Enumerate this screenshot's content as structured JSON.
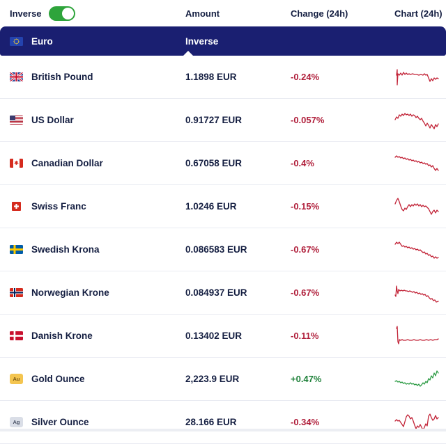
{
  "controls": {
    "inverse_label": "Inverse",
    "inverse_on": true
  },
  "columns": {
    "amount": "Amount",
    "change": "Change (24h)",
    "chart": "Chart (24h)"
  },
  "base_row": {
    "name": "Euro",
    "right_label": "Inverse",
    "icon": {
      "type": "flag",
      "code": "eu"
    }
  },
  "colors": {
    "navy_band": "#1A1F71",
    "text_dark": "#141E41",
    "negative": "#B01F3B",
    "positive": "#1E8039",
    "toggle_green": "#2EA43B",
    "chart_down": "#C22337",
    "chart_up": "#2E9C46",
    "row_border": "#E9EBF2"
  },
  "rows": [
    {
      "name": "British Pound",
      "icon": {
        "type": "flag",
        "code": "gb"
      },
      "amount": "1.1898 EUR",
      "change": "-0.24%",
      "trend": "down",
      "spark": [
        [
          3,
          13
        ],
        [
          4,
          5
        ],
        [
          4,
          27
        ],
        [
          5,
          11
        ],
        [
          7,
          13
        ],
        [
          9,
          10
        ],
        [
          11,
          13
        ],
        [
          13,
          9
        ],
        [
          15,
          12
        ],
        [
          17,
          10
        ],
        [
          19,
          12
        ],
        [
          21,
          11
        ],
        [
          23,
          12
        ],
        [
          26,
          11
        ],
        [
          29,
          12
        ],
        [
          32,
          12
        ],
        [
          35,
          13
        ],
        [
          38,
          12
        ],
        [
          41,
          13
        ],
        [
          43,
          11
        ],
        [
          45,
          13
        ],
        [
          47,
          12
        ],
        [
          49,
          17
        ],
        [
          51,
          22
        ],
        [
          53,
          18
        ],
        [
          55,
          21
        ],
        [
          57,
          17
        ],
        [
          59,
          19
        ],
        [
          61,
          17
        ],
        [
          63,
          18
        ]
      ]
    },
    {
      "name": "US Dollar",
      "icon": {
        "type": "flag",
        "code": "us"
      },
      "amount": "0.91727 EUR",
      "change": "-0.057%",
      "trend": "down",
      "spark": [
        [
          1,
          15
        ],
        [
          3,
          11
        ],
        [
          5,
          13
        ],
        [
          7,
          8
        ],
        [
          9,
          10
        ],
        [
          11,
          7
        ],
        [
          13,
          9
        ],
        [
          15,
          6
        ],
        [
          17,
          8
        ],
        [
          19,
          7
        ],
        [
          21,
          9
        ],
        [
          23,
          7
        ],
        [
          25,
          10
        ],
        [
          27,
          8
        ],
        [
          29,
          9
        ],
        [
          31,
          12
        ],
        [
          33,
          10
        ],
        [
          35,
          13
        ],
        [
          37,
          15
        ],
        [
          39,
          13
        ],
        [
          41,
          17
        ],
        [
          43,
          20
        ],
        [
          45,
          24
        ],
        [
          47,
          20
        ],
        [
          49,
          23
        ],
        [
          51,
          27
        ],
        [
          53,
          22
        ],
        [
          55,
          25
        ],
        [
          57,
          28
        ],
        [
          59,
          22
        ],
        [
          61,
          25
        ],
        [
          63,
          21
        ]
      ]
    },
    {
      "name": "Canadian Dollar",
      "icon": {
        "type": "flag",
        "code": "ca"
      },
      "amount": "0.67058 EUR",
      "change": "-0.4%",
      "trend": "down",
      "spark": [
        [
          1,
          7
        ],
        [
          3,
          5
        ],
        [
          5,
          7
        ],
        [
          7,
          6
        ],
        [
          9,
          8
        ],
        [
          11,
          7
        ],
        [
          13,
          9
        ],
        [
          15,
          8
        ],
        [
          17,
          10
        ],
        [
          19,
          9
        ],
        [
          21,
          11
        ],
        [
          23,
          10
        ],
        [
          25,
          12
        ],
        [
          27,
          11
        ],
        [
          29,
          13
        ],
        [
          31,
          12
        ],
        [
          33,
          14
        ],
        [
          35,
          13
        ],
        [
          37,
          15
        ],
        [
          39,
          14
        ],
        [
          41,
          16
        ],
        [
          43,
          15
        ],
        [
          45,
          17
        ],
        [
          47,
          16
        ],
        [
          49,
          19
        ],
        [
          51,
          18
        ],
        [
          53,
          21
        ],
        [
          55,
          19
        ],
        [
          57,
          23
        ],
        [
          59,
          26
        ],
        [
          61,
          23
        ],
        [
          63,
          26
        ]
      ]
    },
    {
      "name": "Swiss Franc",
      "icon": {
        "type": "flag",
        "code": "ch"
      },
      "amount": "1.0246 EUR",
      "change": "-0.15%",
      "trend": "down",
      "spark": [
        [
          1,
          12
        ],
        [
          3,
          7
        ],
        [
          5,
          4
        ],
        [
          7,
          9
        ],
        [
          9,
          15
        ],
        [
          11,
          20
        ],
        [
          13,
          22
        ],
        [
          15,
          18
        ],
        [
          17,
          20
        ],
        [
          19,
          16
        ],
        [
          21,
          13
        ],
        [
          23,
          16
        ],
        [
          25,
          13
        ],
        [
          27,
          15
        ],
        [
          29,
          12
        ],
        [
          31,
          14
        ],
        [
          33,
          12
        ],
        [
          35,
          15
        ],
        [
          37,
          13
        ],
        [
          39,
          16
        ],
        [
          41,
          14
        ],
        [
          43,
          16
        ],
        [
          45,
          15
        ],
        [
          47,
          17
        ],
        [
          49,
          19
        ],
        [
          51,
          23
        ],
        [
          53,
          27
        ],
        [
          55,
          23
        ],
        [
          57,
          21
        ],
        [
          59,
          25
        ],
        [
          61,
          21
        ],
        [
          63,
          23
        ]
      ]
    },
    {
      "name": "Swedish Krona",
      "icon": {
        "type": "flag",
        "code": "se"
      },
      "amount": "0.086583 EUR",
      "change": "-0.67%",
      "trend": "down",
      "spark": [
        [
          1,
          8
        ],
        [
          3,
          5
        ],
        [
          5,
          7
        ],
        [
          7,
          5
        ],
        [
          9,
          8
        ],
        [
          11,
          11
        ],
        [
          13,
          10
        ],
        [
          15,
          12
        ],
        [
          17,
          11
        ],
        [
          19,
          13
        ],
        [
          21,
          12
        ],
        [
          23,
          14
        ],
        [
          25,
          13
        ],
        [
          27,
          15
        ],
        [
          29,
          14
        ],
        [
          31,
          16
        ],
        [
          33,
          15
        ],
        [
          35,
          17
        ],
        [
          37,
          16
        ],
        [
          39,
          18
        ],
        [
          41,
          20
        ],
        [
          43,
          19
        ],
        [
          45,
          22
        ],
        [
          47,
          21
        ],
        [
          49,
          24
        ],
        [
          51,
          23
        ],
        [
          53,
          26
        ],
        [
          55,
          25
        ],
        [
          57,
          28
        ],
        [
          59,
          26
        ],
        [
          61,
          28
        ],
        [
          63,
          27
        ]
      ]
    },
    {
      "name": "Norwegian Krone",
      "icon": {
        "type": "flag",
        "code": "no"
      },
      "amount": "0.084937 EUR",
      "change": "-0.67%",
      "trend": "down",
      "spark": [
        [
          1,
          19
        ],
        [
          2,
          21
        ],
        [
          3,
          6
        ],
        [
          4,
          13
        ],
        [
          5,
          17
        ],
        [
          6,
          11
        ],
        [
          8,
          13
        ],
        [
          10,
          12
        ],
        [
          12,
          13
        ],
        [
          14,
          12
        ],
        [
          16,
          13
        ],
        [
          18,
          13
        ],
        [
          20,
          14
        ],
        [
          22,
          13
        ],
        [
          24,
          14
        ],
        [
          26,
          15
        ],
        [
          28,
          14
        ],
        [
          30,
          16
        ],
        [
          32,
          15
        ],
        [
          34,
          17
        ],
        [
          36,
          16
        ],
        [
          38,
          18
        ],
        [
          40,
          17
        ],
        [
          42,
          19
        ],
        [
          44,
          18
        ],
        [
          46,
          21
        ],
        [
          48,
          20
        ],
        [
          50,
          23
        ],
        [
          52,
          25
        ],
        [
          54,
          24
        ],
        [
          56,
          27
        ],
        [
          58,
          26
        ],
        [
          60,
          29
        ],
        [
          63,
          28
        ]
      ]
    },
    {
      "name": "Danish Krone",
      "icon": {
        "type": "flag",
        "code": "dk"
      },
      "amount": "0.13402 EUR",
      "change": "-0.11%",
      "trend": "down",
      "spark": [
        [
          3,
          5
        ],
        [
          4,
          2
        ],
        [
          5,
          24
        ],
        [
          6,
          27
        ],
        [
          7,
          21
        ],
        [
          9,
          22
        ],
        [
          11,
          21
        ],
        [
          13,
          22
        ],
        [
          16,
          22
        ],
        [
          19,
          21
        ],
        [
          22,
          22
        ],
        [
          25,
          22
        ],
        [
          28,
          21
        ],
        [
          31,
          22
        ],
        [
          34,
          22
        ],
        [
          37,
          21
        ],
        [
          40,
          22
        ],
        [
          43,
          22
        ],
        [
          46,
          21
        ],
        [
          49,
          22
        ],
        [
          52,
          21
        ],
        [
          55,
          22
        ],
        [
          58,
          21
        ],
        [
          61,
          21
        ],
        [
          63,
          20
        ]
      ]
    },
    {
      "name": "Gold Ounce",
      "icon": {
        "type": "badge",
        "label": "Au",
        "bg": "#F4C550",
        "fg": "#7C5A14"
      },
      "amount": "2,223.9 EUR",
      "change": "+0.47%",
      "trend": "up",
      "spark": [
        [
          1,
          19
        ],
        [
          3,
          18
        ],
        [
          5,
          20
        ],
        [
          7,
          19
        ],
        [
          9,
          21
        ],
        [
          11,
          20
        ],
        [
          13,
          22
        ],
        [
          15,
          21
        ],
        [
          17,
          23
        ],
        [
          19,
          22
        ],
        [
          21,
          23
        ],
        [
          23,
          21
        ],
        [
          25,
          23
        ],
        [
          27,
          22
        ],
        [
          29,
          24
        ],
        [
          31,
          23
        ],
        [
          33,
          25
        ],
        [
          35,
          23
        ],
        [
          37,
          26
        ],
        [
          39,
          24
        ],
        [
          41,
          21
        ],
        [
          43,
          23
        ],
        [
          45,
          19
        ],
        [
          47,
          21
        ],
        [
          49,
          15
        ],
        [
          51,
          17
        ],
        [
          53,
          11
        ],
        [
          55,
          14
        ],
        [
          57,
          7
        ],
        [
          59,
          11
        ],
        [
          61,
          4
        ],
        [
          63,
          7
        ]
      ]
    },
    {
      "name": "Silver Ounce",
      "icon": {
        "type": "badge",
        "label": "Ag",
        "bg": "#DADEE7",
        "fg": "#4C5468"
      },
      "amount": "28.166 EUR",
      "change": "-0.34%",
      "trend": "down",
      "spark": [
        [
          1,
          14
        ],
        [
          3,
          12
        ],
        [
          5,
          14
        ],
        [
          7,
          13
        ],
        [
          9,
          16
        ],
        [
          11,
          19
        ],
        [
          13,
          22
        ],
        [
          15,
          15
        ],
        [
          17,
          8
        ],
        [
          19,
          5
        ],
        [
          21,
          7
        ],
        [
          23,
          11
        ],
        [
          25,
          9
        ],
        [
          27,
          14
        ],
        [
          29,
          20
        ],
        [
          31,
          25
        ],
        [
          33,
          21
        ],
        [
          35,
          23
        ],
        [
          37,
          19
        ],
        [
          39,
          23
        ],
        [
          41,
          27
        ],
        [
          43,
          23
        ],
        [
          45,
          18
        ],
        [
          47,
          21
        ],
        [
          49,
          7
        ],
        [
          51,
          4
        ],
        [
          53,
          9
        ],
        [
          55,
          13
        ],
        [
          57,
          11
        ],
        [
          59,
          6
        ],
        [
          61,
          11
        ],
        [
          63,
          9
        ]
      ]
    }
  ]
}
